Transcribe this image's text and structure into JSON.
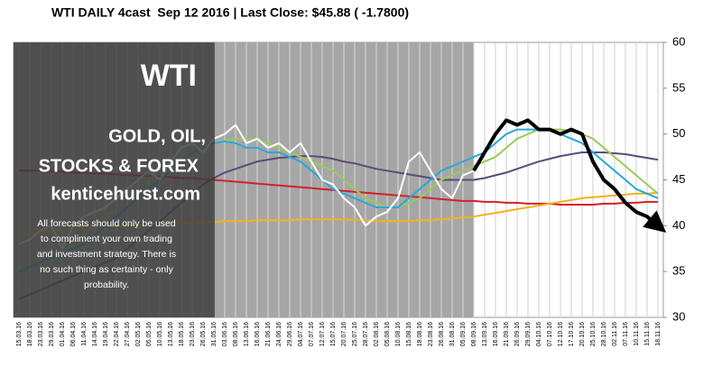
{
  "chart_data": {
    "type": "line",
    "title": "WTI DAILY 4cast  Sep 12 2016 | Last Close: $45.88 ( -1.7800)",
    "categories": [
      "15.03.16",
      "18.03.16",
      "23.03.16",
      "29.03.16",
      "01.04.16",
      "06.04.16",
      "11.04.16",
      "14.04.16",
      "19.04.16",
      "22.04.16",
      "27.04.16",
      "02.05.16",
      "05.05.16",
      "10.05.16",
      "13.05.16",
      "18.05.16",
      "23.05.16",
      "26.05.16",
      "31.05.16",
      "03.06.16",
      "08.06.16",
      "13.06.16",
      "16.06.16",
      "21.06.16",
      "24.06.16",
      "29.06.16",
      "04.07.16",
      "07.07.16",
      "12.07.16",
      "15.07.16",
      "20.07.16",
      "25.07.16",
      "28.07.16",
      "02.08.16",
      "05.08.16",
      "10.08.16",
      "15.08.16",
      "18.08.16",
      "23.08.16",
      "26.08.16",
      "31.08.16",
      "05.09.16",
      "08.09.16",
      "13.09.16",
      "16.09.16",
      "21.09.16",
      "26.09.16",
      "29.09.16",
      "04.10.16",
      "07.10.16",
      "12.10.16",
      "17.10.16",
      "20.10.16",
      "25.10.16",
      "28.10.16",
      "02.11.16",
      "07.11.16",
      "10.11.16",
      "15.11.16",
      "18.11.16"
    ],
    "ylim": [
      30,
      60
    ],
    "yticks": [
      30,
      35,
      40,
      45,
      50,
      55,
      60
    ],
    "grid": true,
    "series": [
      {
        "color": "#d4202a",
        "values": [
          46,
          46,
          46,
          45.9,
          45.9,
          45.8,
          45.8,
          45.7,
          45.7,
          45.6,
          45.5,
          45.5,
          45.4,
          45.4,
          45.3,
          45.2,
          45.2,
          45.1,
          45,
          44.9,
          44.8,
          44.7,
          44.6,
          44.5,
          44.4,
          44.3,
          44.2,
          44.1,
          44,
          43.9,
          43.8,
          43.7,
          43.6,
          43.5,
          43.4,
          43.3,
          43.2,
          43.1,
          43,
          42.9,
          42.8,
          42.7,
          42.7,
          42.6,
          42.6,
          42.5,
          42.5,
          42.4,
          42.4,
          42.4,
          42.3,
          42.3,
          42.3,
          42.3,
          42.4,
          42.4,
          42.5,
          42.5,
          42.6,
          42.6
        ]
      },
      {
        "color": "#f2b21c",
        "values": [
          39,
          39.2,
          39.3,
          39.5,
          39.6,
          39.7,
          39.8,
          39.9,
          40,
          40,
          40,
          40.1,
          40.1,
          40.2,
          40.2,
          40.3,
          40.3,
          40.4,
          40.4,
          40.5,
          40.5,
          40.5,
          40.6,
          40.6,
          40.6,
          40.6,
          40.7,
          40.7,
          40.7,
          40.7,
          40.7,
          40.6,
          40.6,
          40.5,
          40.5,
          40.5,
          40.5,
          40.6,
          40.6,
          40.7,
          40.8,
          40.9,
          41,
          41.2,
          41.4,
          41.6,
          41.8,
          42,
          42.2,
          42.4,
          42.6,
          42.8,
          43,
          43.1,
          43.2,
          43.3,
          43.4,
          43.5,
          43.5,
          43.6
        ]
      },
      {
        "color": "#5a4a7a",
        "values": [
          32,
          32.5,
          33,
          33.5,
          34,
          34.5,
          35,
          35.5,
          36,
          36.5,
          37.5,
          38.5,
          39.5,
          40.5,
          41.5,
          42.5,
          43.5,
          44.5,
          45.2,
          45.8,
          46.2,
          46.6,
          47,
          47.2,
          47.4,
          47.5,
          47.6,
          47.6,
          47.5,
          47.3,
          47,
          46.8,
          46.5,
          46.2,
          46,
          45.8,
          45.6,
          45.4,
          45.2,
          45,
          45,
          45,
          45,
          45.2,
          45.5,
          45.8,
          46.2,
          46.6,
          47,
          47.3,
          47.6,
          47.8,
          48,
          48,
          48,
          47.9,
          47.8,
          47.6,
          47.4,
          47.2
        ]
      },
      {
        "color": "#9acb5a",
        "values": [
          33,
          34,
          35,
          36,
          37,
          38,
          39,
          40,
          41,
          42,
          43,
          44,
          45,
          46,
          47,
          47.5,
          48,
          48.5,
          49,
          49.3,
          49.5,
          49.5,
          49.3,
          49,
          48.5,
          48,
          47.5,
          47,
          46.5,
          46,
          45,
          44,
          43,
          42.5,
          42,
          42,
          42.5,
          43,
          44,
          45,
          45.5,
          46,
          46.5,
          47,
          47.5,
          48.5,
          49.5,
          50,
          50.5,
          50.5,
          50.5,
          50.3,
          50,
          49.5,
          48.5,
          47.5,
          46.5,
          45.5,
          44.5,
          43.5
        ]
      },
      {
        "color": "#29a8d8",
        "values": [
          35,
          35.5,
          36,
          36.5,
          37,
          37.5,
          38,
          39,
          40,
          41,
          42,
          43,
          44,
          45,
          46,
          47,
          48,
          48.5,
          49,
          49.2,
          49,
          48.5,
          48.5,
          48,
          48,
          47.5,
          47,
          46,
          45,
          44,
          43.5,
          43,
          42.5,
          42,
          42,
          42,
          43,
          44,
          45,
          46,
          46.5,
          47,
          47.5,
          48,
          49,
          50,
          50.5,
          50.5,
          50.5,
          50.5,
          50,
          49.5,
          49,
          48,
          47,
          46,
          45,
          44,
          43.5,
          43
        ]
      },
      {
        "color": "#ffffff",
        "values": [
          38,
          38.5,
          39.5,
          40,
          37.5,
          40,
          41,
          41.5,
          42,
          43,
          44,
          45,
          46,
          45,
          47,
          48.5,
          49,
          48,
          49.5,
          50,
          51,
          49,
          49.5,
          48.5,
          49,
          48,
          49,
          47,
          45,
          44.5,
          43,
          42,
          40,
          41,
          41.5,
          43,
          47,
          48,
          46,
          44,
          43,
          45.5,
          46,
          null,
          null,
          null,
          null,
          null,
          null,
          null,
          null,
          null,
          null,
          null,
          null,
          null,
          null,
          null,
          null,
          null
        ]
      },
      {
        "color": "#000000",
        "values": [
          null,
          null,
          null,
          null,
          null,
          null,
          null,
          null,
          null,
          null,
          null,
          null,
          null,
          null,
          null,
          null,
          null,
          null,
          null,
          null,
          null,
          null,
          null,
          null,
          null,
          null,
          null,
          null,
          null,
          null,
          null,
          null,
          null,
          null,
          null,
          null,
          null,
          null,
          null,
          null,
          null,
          null,
          46,
          48,
          50,
          51.5,
          51,
          51.5,
          50.5,
          50.5,
          50,
          50.5,
          50,
          47,
          45,
          44,
          42.5,
          41.5,
          41,
          40
        ]
      }
    ]
  },
  "overlay": {
    "brand": "WTI",
    "line1": "GOLD, OIL,",
    "line2": "STOCKS & FOREX",
    "site": "kenticehurst.com",
    "disclaimer": [
      "All forecasts should only be used",
      "to compliment your own trading",
      "and investment strategy. There is",
      "no such thing as certainty - only",
      "probability."
    ]
  }
}
